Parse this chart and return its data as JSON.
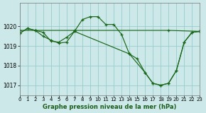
{
  "title": "Graphe pression niveau de la mer (hPa)",
  "bg_color": "#cce8e8",
  "grid_color": "#99cccc",
  "line_color": "#1a6618",
  "xlim": [
    0,
    23
  ],
  "ylim": [
    1016.5,
    1021.2
  ],
  "yticks": [
    1017,
    1018,
    1019,
    1020
  ],
  "xticks": [
    0,
    1,
    2,
    3,
    4,
    5,
    6,
    7,
    8,
    9,
    10,
    11,
    12,
    13,
    14,
    15,
    16,
    17,
    18,
    19,
    20,
    21,
    22,
    23
  ],
  "series": [
    {
      "x": [
        0,
        1,
        2,
        3,
        4,
        5,
        6,
        7,
        8,
        9,
        10,
        11,
        12,
        13,
        14,
        15,
        16,
        17,
        18,
        19,
        20,
        21,
        22,
        23
      ],
      "y": [
        1019.65,
        1019.9,
        1019.8,
        1019.7,
        1019.25,
        1019.2,
        1019.45,
        1019.75,
        1020.35,
        1020.5,
        1020.5,
        1020.1,
        1020.1,
        1019.6,
        1018.6,
        1018.35,
        1017.65,
        1017.1,
        1017.0,
        1017.1,
        1017.75,
        1019.2,
        1019.7,
        1019.75
      ]
    },
    {
      "x": [
        0,
        2,
        7,
        19,
        23
      ],
      "y": [
        1019.8,
        1019.8,
        1019.8,
        1019.8,
        1019.75
      ]
    },
    {
      "x": [
        0,
        1,
        2,
        3,
        4,
        5,
        6,
        7,
        14,
        16,
        17,
        18,
        19,
        20,
        21,
        22,
        23
      ],
      "y": [
        1019.65,
        1019.9,
        1019.8,
        1019.5,
        1019.3,
        1019.15,
        1019.2,
        1019.75,
        1018.6,
        1017.65,
        1017.1,
        1017.0,
        1017.1,
        1017.75,
        1019.2,
        1019.7,
        1019.75
      ]
    }
  ]
}
